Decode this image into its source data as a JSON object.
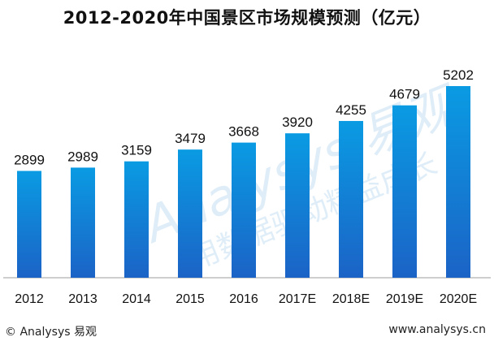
{
  "title": "2012-2020年中国景区市场规模预测（亿元）",
  "footer": {
    "copyright": "© Analysys 易观",
    "url": "www.analysys.cn"
  },
  "watermark": {
    "brand": "Analysys 易观",
    "slogan": "用数据驱动精益成长"
  },
  "colors": {
    "bar_top": "#0a9be3",
    "bar_bottom": "#1b63c6",
    "axis": "#9e9e9e"
  },
  "chart_data": {
    "type": "bar",
    "categories": [
      "2012",
      "2013",
      "2014",
      "2015",
      "2016",
      "2017E",
      "2018E",
      "2019E",
      "2020E"
    ],
    "values": [
      2899,
      2989,
      3159,
      3479,
      3668,
      3920,
      4255,
      4679,
      5202
    ],
    "title": "2012-2020年中国景区市场规模预测（亿元）",
    "xlabel": "",
    "ylabel": "",
    "ylim": [
      0,
      5202
    ],
    "data_labels": true,
    "grid": false,
    "legend": "none"
  }
}
